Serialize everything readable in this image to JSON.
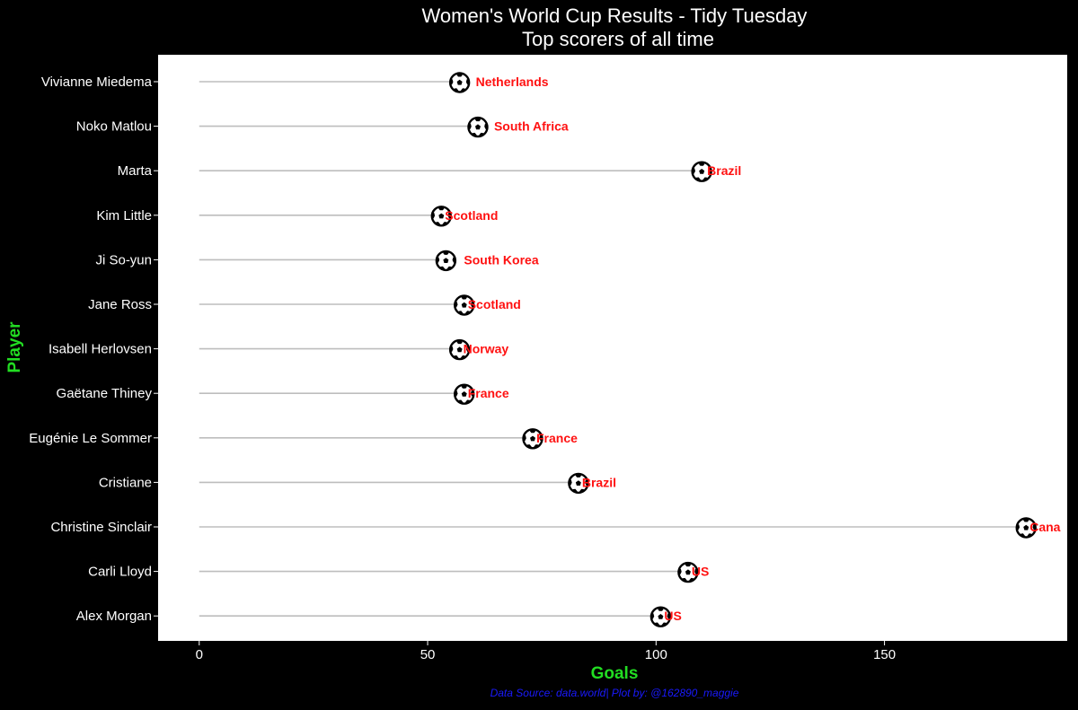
{
  "colors": {
    "background": "#000000",
    "panel": "#ffffff",
    "segment": "#bdbdbd",
    "country_label": "#ff1111",
    "axis_title": "#22dd22",
    "caption": "#1a1aff",
    "text": "#ffffff"
  },
  "chart_data": {
    "type": "lollipop",
    "title": "Women's World Cup Results - Tidy Tuesday",
    "subtitle": "Top scorers of all time",
    "xlabel": "Goals",
    "ylabel": "Player",
    "xlim": [
      -9,
      190
    ],
    "xticks": [
      0,
      50,
      100,
      150
    ],
    "marker_icon": "soccer-ball-icon",
    "grid": false,
    "caption": "Data Source: data.world| Plot by: @162890_maggie",
    "players": [
      "Vivianne Miedema",
      "Noko Matlou",
      "Marta",
      "Kim Little",
      "Ji So-yun",
      "Jane Ross",
      "Isabell Herlovsen",
      "Gaëtane Thiney",
      "Eugénie Le Sommer",
      "Cristiane",
      "Christine Sinclair",
      "Carli Lloyd",
      "Alex Morgan"
    ],
    "goals": [
      57,
      61,
      110,
      53,
      54,
      58,
      57,
      58,
      73,
      83,
      181,
      107,
      101
    ],
    "countries": [
      "Netherlands",
      "South Africa",
      "Brazil",
      "Scotland",
      "South Korea",
      "Scotland",
      "Norway",
      "France",
      "France",
      "Brazil",
      "Cana",
      "US",
      "US"
    ],
    "label_offsets": [
      18,
      18,
      6,
      4,
      20,
      4,
      4,
      4,
      4,
      4,
      4,
      4,
      4
    ]
  }
}
